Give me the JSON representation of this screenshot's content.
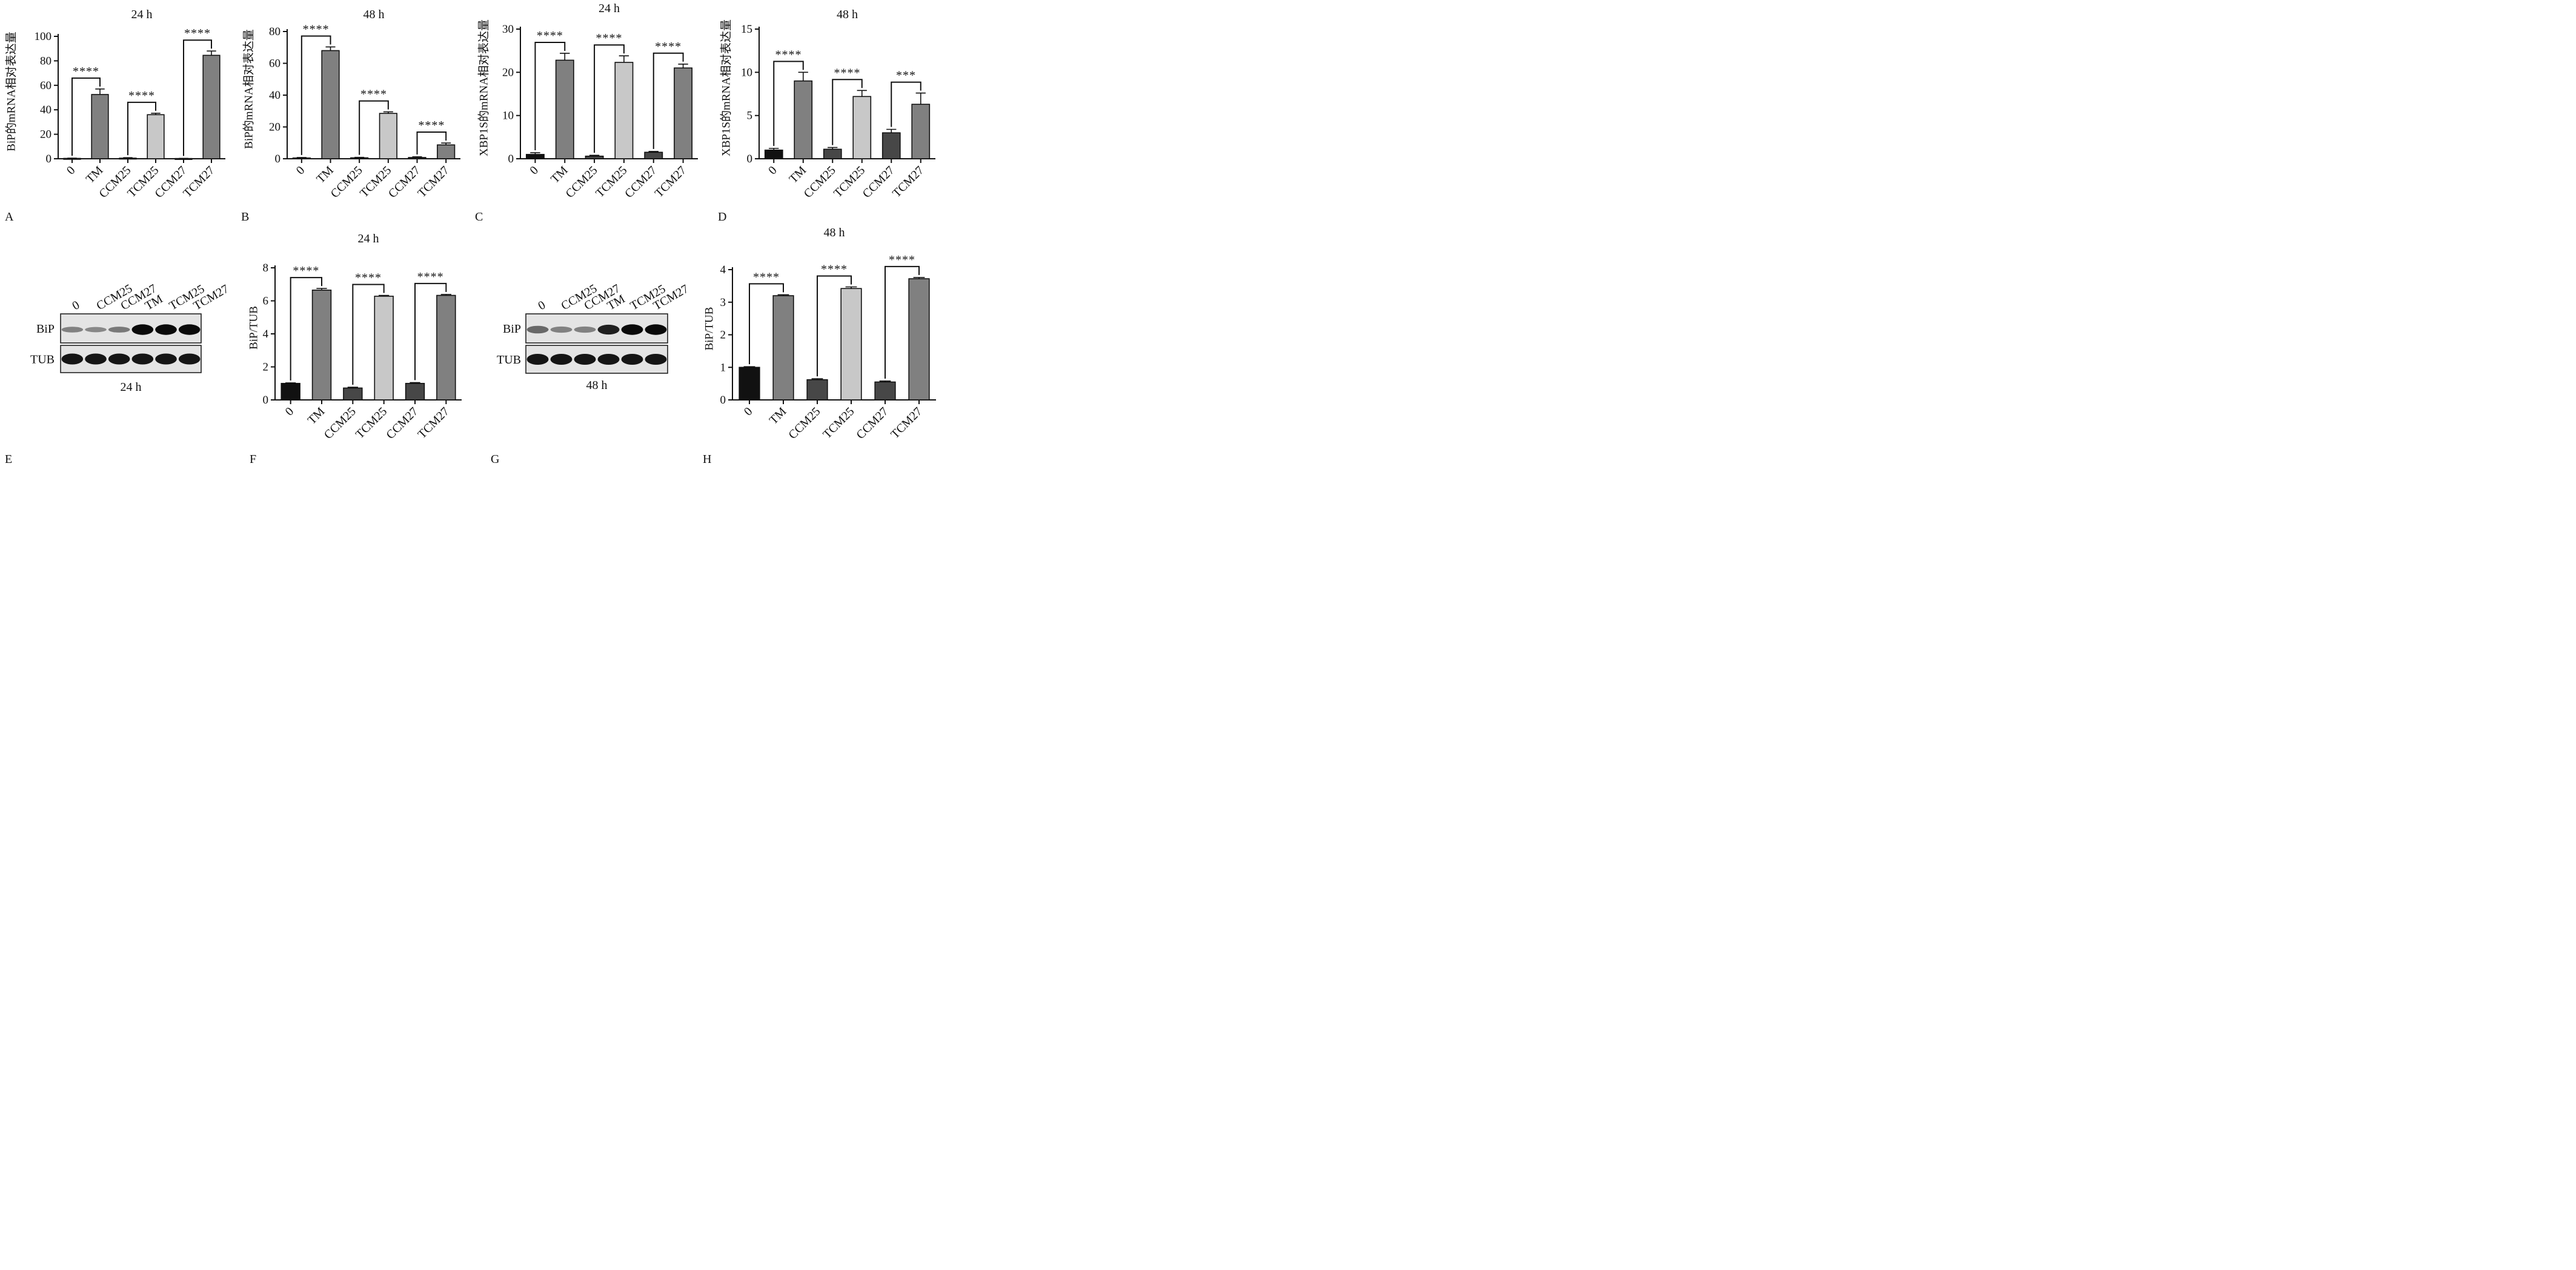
{
  "colors": {
    "black": "#111111",
    "dark": "#474747",
    "mid": "#808080",
    "light": "#c8c8c8",
    "axis": "#111111"
  },
  "chart_data": [
    {
      "panel": "A",
      "type": "bar",
      "title": "24 h",
      "ylabel": "BiP的mRNA相对表达量",
      "ylim": [
        0,
        100
      ],
      "yticks": [
        0,
        20,
        40,
        60,
        80,
        100
      ],
      "categories": [
        "0",
        "TM",
        "CCM25",
        "TCM25",
        "CCM27",
        "TCM27"
      ],
      "values": [
        0.3,
        52.5,
        0.5,
        36,
        0.2,
        84.5
      ],
      "errors": [
        0.2,
        4.5,
        0.4,
        1.2,
        0.1,
        3.5
      ],
      "bar_colors": [
        "black",
        "mid",
        "dark",
        "light",
        "dark",
        "mid"
      ],
      "comparisons": [
        {
          "from": 0,
          "to": 1,
          "label": "****"
        },
        {
          "from": 2,
          "to": 3,
          "label": "****"
        },
        {
          "from": 4,
          "to": 5,
          "label": "****"
        }
      ]
    },
    {
      "panel": "B",
      "type": "bar",
      "title": "48 h",
      "ylabel": "BiP的mRNA相对表达量",
      "ylim": [
        0,
        80
      ],
      "yticks": [
        0,
        20,
        40,
        60,
        80
      ],
      "categories": [
        "0",
        "TM",
        "CCM25",
        "TCM25",
        "CCM27",
        "TCM27"
      ],
      "values": [
        0.5,
        68,
        0.6,
        28.5,
        0.8,
        8.7
      ],
      "errors": [
        0.3,
        2.3,
        0.3,
        1.0,
        0.4,
        1.2
      ],
      "bar_colors": [
        "black",
        "mid",
        "dark",
        "light",
        "dark",
        "mid"
      ],
      "comparisons": [
        {
          "from": 0,
          "to": 1,
          "label": "****"
        },
        {
          "from": 2,
          "to": 3,
          "label": "****"
        },
        {
          "from": 4,
          "to": 5,
          "label": "****"
        }
      ]
    },
    {
      "panel": "C",
      "type": "bar",
      "title": "24 h",
      "ylabel": "XBP1S的mRNA相对表达量",
      "ylim": [
        0,
        30
      ],
      "yticks": [
        0,
        10,
        20,
        30
      ],
      "categories": [
        "0",
        "TM",
        "CCM25",
        "TCM25",
        "CCM27",
        "TCM27"
      ],
      "values": [
        1.0,
        22.8,
        0.6,
        22.3,
        1.5,
        21.0
      ],
      "errors": [
        0.4,
        1.6,
        0.2,
        1.5,
        0.2,
        0.9
      ],
      "bar_colors": [
        "black",
        "mid",
        "dark",
        "light",
        "dark",
        "mid"
      ],
      "comparisons": [
        {
          "from": 0,
          "to": 1,
          "label": "****"
        },
        {
          "from": 2,
          "to": 3,
          "label": "****"
        },
        {
          "from": 4,
          "to": 5,
          "label": "****"
        }
      ]
    },
    {
      "panel": "D",
      "type": "bar",
      "title": "48 h",
      "ylabel": "XBP1S的mRNA相对表达量",
      "ylim": [
        0,
        15
      ],
      "yticks": [
        0,
        5,
        10,
        15
      ],
      "categories": [
        "0",
        "TM",
        "CCM25",
        "TCM25",
        "CCM27",
        "TCM27"
      ],
      "values": [
        1.0,
        9.0,
        1.1,
        7.2,
        3.0,
        6.3
      ],
      "errors": [
        0.2,
        1.0,
        0.2,
        0.7,
        0.4,
        1.3
      ],
      "bar_colors": [
        "black",
        "mid",
        "dark",
        "light",
        "dark",
        "mid"
      ],
      "comparisons": [
        {
          "from": 0,
          "to": 1,
          "label": "****"
        },
        {
          "from": 2,
          "to": 3,
          "label": "****"
        },
        {
          "from": 4,
          "to": 5,
          "label": "***"
        }
      ]
    },
    {
      "panel": "F",
      "type": "bar",
      "title": "24 h",
      "ylabel": "BiP/TUB",
      "ylim": [
        0,
        8
      ],
      "yticks": [
        0,
        2,
        4,
        6,
        8
      ],
      "categories": [
        "0",
        "TM",
        "CCM25",
        "TCM25",
        "CCM27",
        "TCM27"
      ],
      "values": [
        1.0,
        6.65,
        0.72,
        6.28,
        1.0,
        6.33
      ],
      "errors": [
        0.03,
        0.1,
        0.05,
        0.05,
        0.05,
        0.06
      ],
      "bar_colors": [
        "black",
        "mid",
        "dark",
        "light",
        "dark",
        "mid"
      ],
      "comparisons": [
        {
          "from": 0,
          "to": 1,
          "label": "****"
        },
        {
          "from": 2,
          "to": 3,
          "label": "****"
        },
        {
          "from": 4,
          "to": 5,
          "label": "****"
        }
      ]
    },
    {
      "panel": "H",
      "type": "bar",
      "title": "48 h",
      "ylabel": "BiP/TUB",
      "ylim": [
        0,
        4
      ],
      "yticks": [
        0,
        1,
        2,
        3,
        4
      ],
      "categories": [
        "0",
        "TM",
        "CCM25",
        "TCM25",
        "CCM27",
        "TCM27"
      ],
      "values": [
        1.0,
        3.2,
        0.62,
        3.42,
        0.55,
        3.72
      ],
      "errors": [
        0.02,
        0.03,
        0.03,
        0.05,
        0.03,
        0.04
      ],
      "bar_colors": [
        "black",
        "mid",
        "dark",
        "light",
        "dark",
        "mid"
      ],
      "comparisons": [
        {
          "from": 0,
          "to": 1,
          "label": "****"
        },
        {
          "from": 2,
          "to": 3,
          "label": "****"
        },
        {
          "from": 4,
          "to": 5,
          "label": "****"
        }
      ]
    }
  ],
  "blots": [
    {
      "panel": "E",
      "lanes": [
        "0",
        "CCM25",
        "CCM27",
        "TM",
        "TCM25",
        "TCM27"
      ],
      "rows": [
        "BiP",
        "TUB"
      ],
      "caption": "24 h"
    },
    {
      "panel": "G",
      "lanes": [
        "0",
        "CCM25",
        "CCM27",
        "TM",
        "TCM25",
        "TCM27"
      ],
      "rows": [
        "BiP",
        "TUB"
      ],
      "caption": "48 h"
    }
  ],
  "panel_letters": [
    "A",
    "B",
    "C",
    "D",
    "E",
    "F",
    "G",
    "H"
  ]
}
